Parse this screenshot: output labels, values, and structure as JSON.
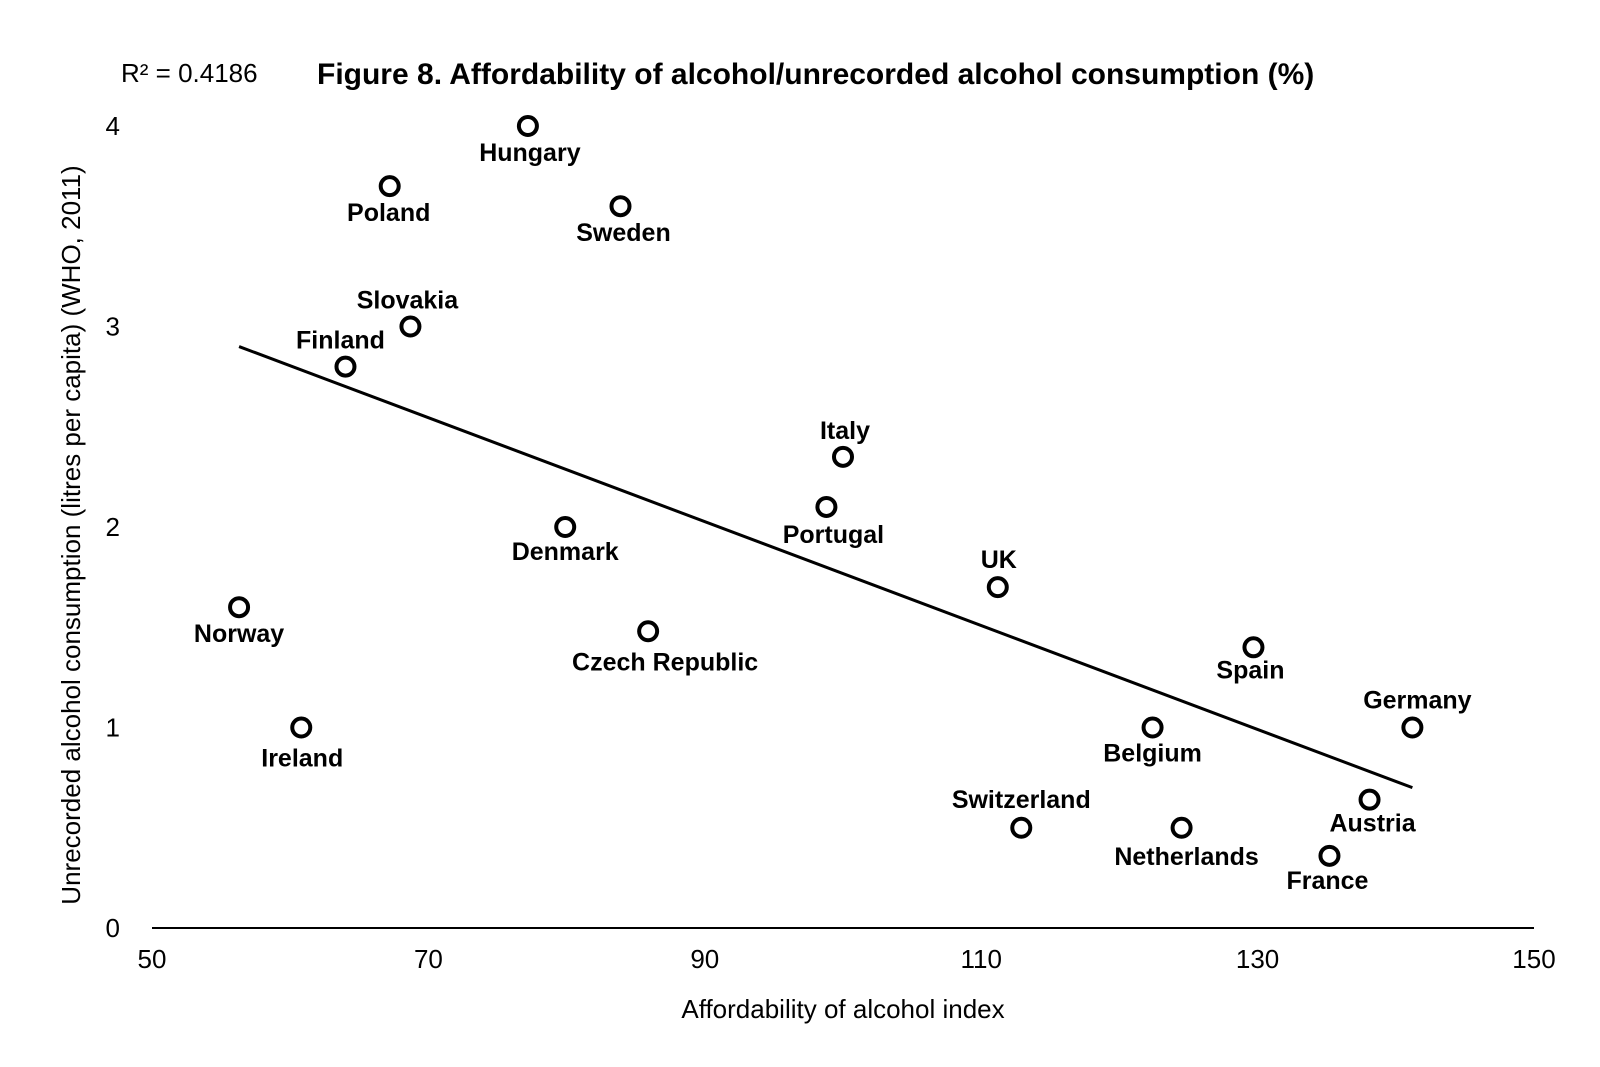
{
  "chart_data": {
    "type": "scatter",
    "title": "Figure 8. Affordability of alcohol/unrecorded alcohol consumption (%)",
    "annotation": "R² = 0.4186",
    "xlabel": "Affordability of alcohol index",
    "ylabel": "Unrecorded alcohol consumption (litres per capita) (WHO, 2011)",
    "xlim": [
      50,
      150
    ],
    "ylim": [
      0,
      4
    ],
    "xticks": [
      "50",
      "70",
      "90",
      "110",
      "130",
      "150"
    ],
    "yticks": [
      "0",
      "1",
      "2",
      "3",
      "4"
    ],
    "grid": false,
    "legend": "none",
    "trendline": {
      "x": [
        56.3,
        141.2
      ],
      "y": [
        2.9,
        0.7
      ]
    },
    "points": [
      {
        "name": "Hungary",
        "x": 77.2,
        "y": 4.0
      },
      {
        "name": "Poland",
        "x": 67.2,
        "y": 3.7
      },
      {
        "name": "Sweden",
        "x": 83.9,
        "y": 3.6
      },
      {
        "name": "Slovakia",
        "x": 68.7,
        "y": 3.0
      },
      {
        "name": "Finland",
        "x": 64.0,
        "y": 2.8
      },
      {
        "name": "Italy",
        "x": 100.0,
        "y": 2.35
      },
      {
        "name": "Portugal",
        "x": 98.8,
        "y": 2.1
      },
      {
        "name": "Denmark",
        "x": 79.9,
        "y": 2.0
      },
      {
        "name": "UK",
        "x": 111.2,
        "y": 1.7
      },
      {
        "name": "Norway",
        "x": 56.3,
        "y": 1.6
      },
      {
        "name": "Czech Republic",
        "x": 85.9,
        "y": 1.48
      },
      {
        "name": "Spain",
        "x": 129.7,
        "y": 1.4
      },
      {
        "name": "Ireland",
        "x": 60.8,
        "y": 1.0
      },
      {
        "name": "Belgium",
        "x": 122.4,
        "y": 1.0
      },
      {
        "name": "Germany",
        "x": 141.2,
        "y": 1.0
      },
      {
        "name": "Austria",
        "x": 138.1,
        "y": 0.64
      },
      {
        "name": "Switzerland",
        "x": 112.9,
        "y": 0.5
      },
      {
        "name": "Netherlands",
        "x": 124.5,
        "y": 0.5
      },
      {
        "name": "France",
        "x": 135.2,
        "y": 0.36
      }
    ]
  }
}
